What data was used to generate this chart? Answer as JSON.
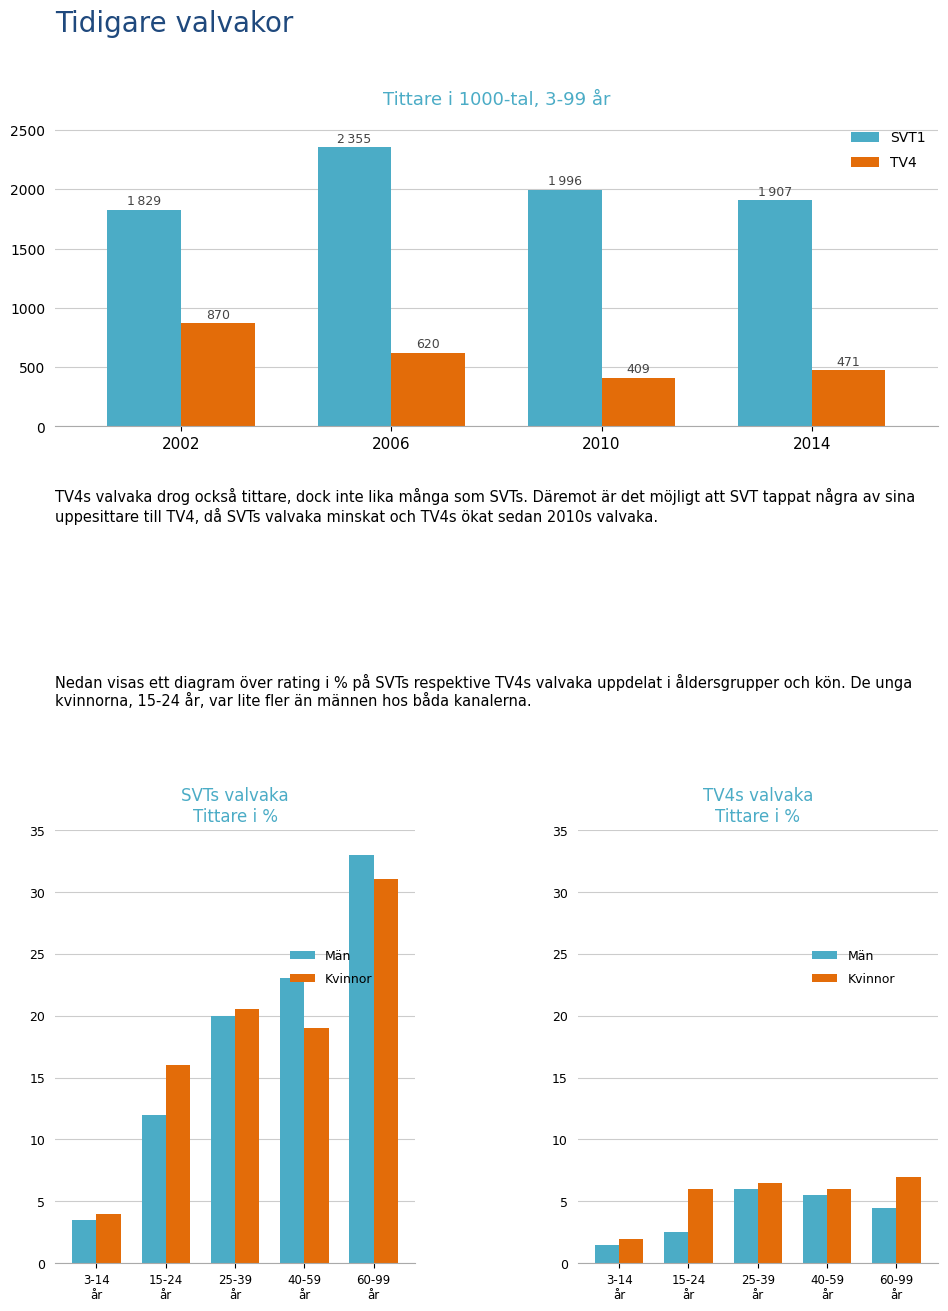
{
  "title": "Tidigare valvakor",
  "title_color": "#1f497d",
  "title_fontsize": 20,
  "bar_chart_title": "Tittare i 1000-tal, 3-99 år",
  "bar_chart_title_color": "#4bacc6",
  "bar_chart_title_fontsize": 13,
  "years": [
    "2002",
    "2006",
    "2010",
    "2014"
  ],
  "svt1_values": [
    1829,
    2355,
    1996,
    1907
  ],
  "tv4_values": [
    870,
    620,
    409,
    471
  ],
  "svt1_color": "#4bacc6",
  "tv4_color": "#e36c09",
  "bar_ylim": [
    0,
    2600
  ],
  "bar_yticks": [
    0,
    500,
    1000,
    1500,
    2000,
    2500
  ],
  "legend_svt1": "SVT1",
  "legend_tv4": "TV4",
  "text1": "TV4s valvaka drog också tittare, dock inte lika många som SVTs. Däremot är det möjligt att SVT tappat några av sina uppesittare till TV4, då SVTs valvaka minskat och TV4s ökat sedan 2010s valvaka.",
  "text2": "Nedan visas ett diagram över rating i % på SVTs respektive TV4s valvaka uppdelat i åldersgrupper och kön. De unga kvinnorna, 15-24 år, var lite fler än männen hos båda kanalerna.",
  "svt_sub_title": "SVTs valvaka\nTittare i %",
  "tv4_sub_title": "TV4s valvaka\nTittare i %",
  "sub_title_color": "#4bacc6",
  "sub_title_fontsize": 12,
  "age_categories": [
    "3-14\når",
    "15-24\når",
    "25-39\når",
    "40-59\når",
    "60-99\når"
  ],
  "svt_man": [
    3.5,
    12,
    20,
    23,
    33
  ],
  "svt_kvinna": [
    4,
    16,
    20.5,
    19,
    31
  ],
  "tv4_man": [
    1.5,
    2.5,
    6,
    5.5,
    4.5
  ],
  "tv4_kvinna": [
    2,
    6,
    6.5,
    6,
    7
  ],
  "man_color": "#4bacc6",
  "kvinna_color": "#e36c09",
  "sub_ylim": [
    0,
    35
  ],
  "sub_yticks": [
    0,
    5,
    10,
    15,
    20,
    25,
    30,
    35
  ],
  "legend_man": "Män",
  "legend_kvinna": "Kvinnor"
}
